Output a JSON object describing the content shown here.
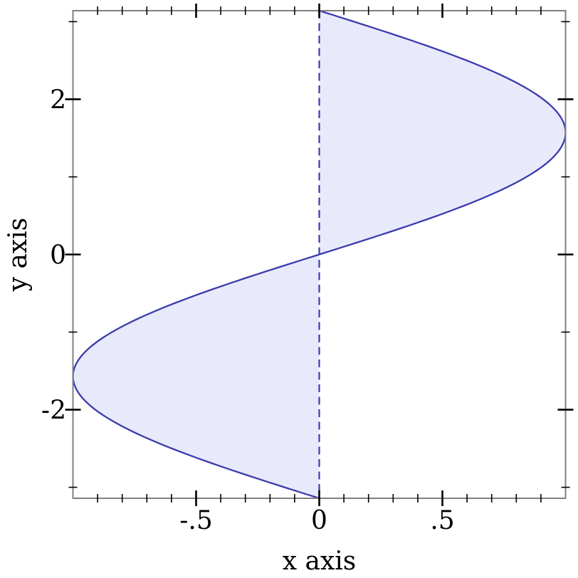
{
  "chart_data": {
    "type": "area",
    "title": "",
    "xlabel": "x axis",
    "ylabel": "y axis",
    "x_range": [
      -1,
      1
    ],
    "y_range": [
      -3.141592653589793,
      3.141592653589793
    ],
    "function": "x = sin(y)",
    "area_between": [
      "x = sin(y)",
      "x = 0"
    ],
    "zero_line": {
      "x": 0,
      "style": "long-dash"
    },
    "grid": false,
    "legend": "none",
    "x_major_ticks": [
      {
        "value": -0.5,
        "label": "-.5"
      },
      {
        "value": 0,
        "label": "0"
      },
      {
        "value": 0.5,
        "label": ".5"
      }
    ],
    "x_minor_ticks": [
      -0.9,
      -0.8,
      -0.7,
      -0.6,
      -0.4,
      -0.3,
      -0.2,
      -0.1,
      0.1,
      0.2,
      0.3,
      0.4,
      0.6,
      0.7,
      0.8,
      0.9
    ],
    "y_major_ticks": [
      {
        "value": -2,
        "label": "-2"
      },
      {
        "value": 0,
        "label": "0"
      },
      {
        "value": 2,
        "label": "2"
      }
    ],
    "y_minor_ticks": [
      -3,
      -1,
      1,
      3
    ],
    "sample_points_xy": [
      [
        0,
        -3.1416
      ],
      [
        -0.7071,
        -2.3562
      ],
      [
        -1,
        -1.5708
      ],
      [
        -0.7071,
        -0.7854
      ],
      [
        0,
        0
      ],
      [
        0.7071,
        0.7854
      ],
      [
        1,
        1.5708
      ],
      [
        0.7071,
        2.3562
      ],
      [
        0,
        3.1416
      ]
    ],
    "colors": {
      "curve": "#3b3bad",
      "fill": "#e8eafb",
      "border": "#808080",
      "ticks": "#000000",
      "labels": "#000000"
    }
  }
}
